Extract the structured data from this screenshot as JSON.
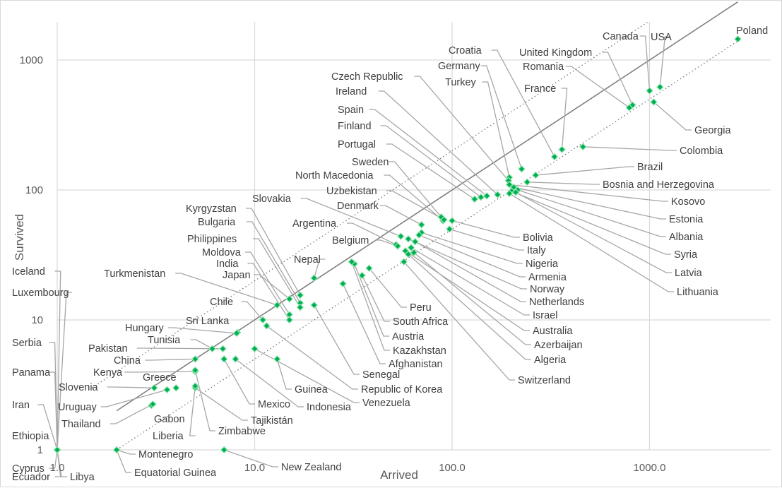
{
  "chart_data": {
    "type": "scatter",
    "title": "",
    "xlabel": "Arrived",
    "ylabel": "Survived",
    "x_scale": "log",
    "y_scale": "log",
    "xlim": [
      0.85,
      2800
    ],
    "ylim": [
      0.92,
      1950
    ],
    "x_ticks": [
      1,
      10,
      100,
      1000
    ],
    "x_tick_labels": [
      "1.0",
      "10.0",
      "100.0",
      "1000.0"
    ],
    "y_ticks": [
      1,
      10,
      100,
      1000
    ],
    "y_tick_labels": [
      "1",
      "10",
      "100",
      "1000"
    ],
    "grid": true,
    "legend": "none",
    "colors": {
      "marker": "#00b050",
      "identity_line": "#7f7f7f",
      "band_lines": "#7f7f7f",
      "leader_lines": "#a6a6a6"
    },
    "reference_lines": [
      {
        "style": "solid",
        "ratio": 1
      },
      {
        "style": "dotted",
        "ratio": 2
      },
      {
        "style": "dotted",
        "ratio": 0.5
      }
    ],
    "points": [
      {
        "name": "Poland",
        "x": 2800,
        "y": 1450
      },
      {
        "name": "USA",
        "x": 1130,
        "y": 620
      },
      {
        "name": "Canada",
        "x": 1000,
        "y": 580
      },
      {
        "name": "Georgia",
        "x": 1050,
        "y": 475
      },
      {
        "name": "United Kingdom",
        "x": 820,
        "y": 450
      },
      {
        "name": "Romania",
        "x": 790,
        "y": 430
      },
      {
        "name": "Colombia",
        "x": 460,
        "y": 215
      },
      {
        "name": "France",
        "x": 360,
        "y": 205
      },
      {
        "name": "Croatia",
        "x": 330,
        "y": 180
      },
      {
        "name": "Brazil",
        "x": 265,
        "y": 130
      },
      {
        "name": "Germany",
        "x": 225,
        "y": 145
      },
      {
        "name": "Turkey",
        "x": 195,
        "y": 125
      },
      {
        "name": "Czech Republic",
        "x": 193,
        "y": 118
      },
      {
        "name": "Bosnia and Herzegovina",
        "x": 240,
        "y": 115
      },
      {
        "name": "Kosovo",
        "x": 195,
        "y": 110
      },
      {
        "name": "Estonia",
        "x": 205,
        "y": 105
      },
      {
        "name": "Albania",
        "x": 215,
        "y": 100
      },
      {
        "name": "Syria",
        "x": 200,
        "y": 98
      },
      {
        "name": "Latvia",
        "x": 210,
        "y": 96
      },
      {
        "name": "Lithuania",
        "x": 195,
        "y": 94
      },
      {
        "name": "Ireland",
        "x": 170,
        "y": 92
      },
      {
        "name": "Spain",
        "x": 150,
        "y": 90
      },
      {
        "name": "Finland",
        "x": 140,
        "y": 88
      },
      {
        "name": "Portugal",
        "x": 130,
        "y": 85
      },
      {
        "name": "Sweden",
        "x": 88,
        "y": 62
      },
      {
        "name": "North Macedonia",
        "x": 90,
        "y": 58
      },
      {
        "name": "Uzbekistan",
        "x": 91,
        "y": 59
      },
      {
        "name": "Bolivia",
        "x": 100,
        "y": 58
      },
      {
        "name": "Italy",
        "x": 97,
        "y": 50
      },
      {
        "name": "Denmark",
        "x": 70,
        "y": 54
      },
      {
        "name": "Nigeria",
        "x": 70,
        "y": 47
      },
      {
        "name": "Armenia",
        "x": 68,
        "y": 45
      },
      {
        "name": "Norway",
        "x": 60,
        "y": 42
      },
      {
        "name": "Netherlands",
        "x": 65,
        "y": 40
      },
      {
        "name": "Israel",
        "x": 62,
        "y": 36
      },
      {
        "name": "Australia",
        "x": 58,
        "y": 34
      },
      {
        "name": "Azerbaijan",
        "x": 64,
        "y": 33
      },
      {
        "name": "Algeria",
        "x": 60,
        "y": 32
      },
      {
        "name": "Switzerland",
        "x": 57,
        "y": 28
      },
      {
        "name": "Slovakia",
        "x": 55,
        "y": 44
      },
      {
        "name": "Argentina",
        "x": 52,
        "y": 38
      },
      {
        "name": "Belgium",
        "x": 53,
        "y": 37
      },
      {
        "name": "Peru",
        "x": 38,
        "y": 25
      },
      {
        "name": "South Africa",
        "x": 35,
        "y": 22
      },
      {
        "name": "Austria",
        "x": 32,
        "y": 27
      },
      {
        "name": "Kazakhstan",
        "x": 31,
        "y": 28
      },
      {
        "name": "Afghanistan",
        "x": 28,
        "y": 19
      },
      {
        "name": "Nepal",
        "x": 20,
        "y": 21
      },
      {
        "name": "Senegal",
        "x": 20,
        "y": 13
      },
      {
        "name": "Kyrgyzstan",
        "x": 17,
        "y": 15.5
      },
      {
        "name": "Bulgaria",
        "x": 17,
        "y": 13.5
      },
      {
        "name": "Philippines",
        "x": 17,
        "y": 12.5
      },
      {
        "name": "Moldova",
        "x": 15,
        "y": 11
      },
      {
        "name": "India",
        "x": 15,
        "y": 10
      },
      {
        "name": "Japan",
        "x": 15,
        "y": 14.5
      },
      {
        "name": "Turkmenistan",
        "x": 13,
        "y": 13
      },
      {
        "name": "Republic of Korea",
        "x": 11.5,
        "y": 9
      },
      {
        "name": "Chile",
        "x": 11,
        "y": 10
      },
      {
        "name": "Sri Lanka",
        "x": 8.2,
        "y": 8
      },
      {
        "name": "Hungary",
        "x": 8.1,
        "y": 7.9
      },
      {
        "name": "Tunisia",
        "x": 6.1,
        "y": 6
      },
      {
        "name": "Pakistan",
        "x": 6.9,
        "y": 6
      },
      {
        "name": "Guinea",
        "x": 13,
        "y": 5
      },
      {
        "name": "Venezuela",
        "x": 10,
        "y": 6
      },
      {
        "name": "Indonesia",
        "x": 8,
        "y": 5
      },
      {
        "name": "Mexico",
        "x": 7,
        "y": 5
      },
      {
        "name": "China",
        "x": 5,
        "y": 5
      },
      {
        "name": "Kenya",
        "x": 5,
        "y": 4
      },
      {
        "name": "Tajikistán",
        "x": 5,
        "y": 3
      },
      {
        "name": "Slovenia",
        "x": 3.1,
        "y": 3
      },
      {
        "name": "Greece",
        "x": 4,
        "y": 3
      },
      {
        "name": "Uruguay",
        "x": 3.6,
        "y": 2.9
      },
      {
        "name": "Gabon",
        "x": 3,
        "y": 2.2
      },
      {
        "name": "Thailand",
        "x": 3.05,
        "y": 2.25
      },
      {
        "name": "Liberia",
        "x": 5,
        "y": 3.1
      },
      {
        "name": "Zimbabwe",
        "x": 5,
        "y": 4.1
      },
      {
        "name": "Montenegro",
        "x": 2,
        "y": 1
      },
      {
        "name": "Equatorial Guinea",
        "x": 2,
        "y": 1
      },
      {
        "name": "New Zealand",
        "x": 7,
        "y": 1
      },
      {
        "name": "Iceland",
        "x": 1,
        "y": 1
      },
      {
        "name": "Luxembourg",
        "x": 1,
        "y": 1
      },
      {
        "name": "Serbia",
        "x": 1,
        "y": 1
      },
      {
        "name": "Panama",
        "x": 1,
        "y": 1
      },
      {
        "name": "Iran",
        "x": 1,
        "y": 1
      },
      {
        "name": "Ethiopia",
        "x": 1,
        "y": 1
      },
      {
        "name": "Cyprus",
        "x": 1,
        "y": 1
      },
      {
        "name": "Ecuador",
        "x": 1,
        "y": 1
      },
      {
        "name": "Libya",
        "x": 1,
        "y": 1
      }
    ]
  }
}
